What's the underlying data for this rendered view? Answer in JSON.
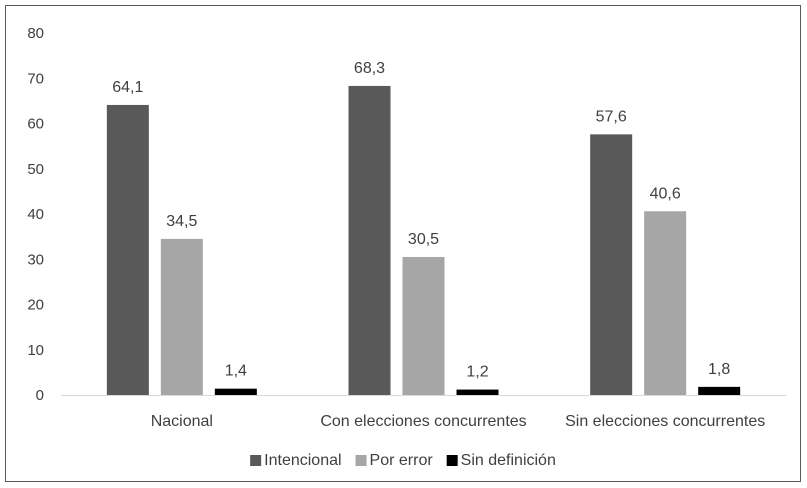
{
  "chart_data": {
    "type": "bar",
    "categories": [
      "Nacional",
      "Con elecciones concurrentes",
      "Sin elecciones concurrentes"
    ],
    "series": [
      {
        "name": "Intencional",
        "values": [
          64.1,
          68.3,
          57.6
        ],
        "labels": [
          "64,1",
          "68,3",
          "57,6"
        ],
        "color": "#595959"
      },
      {
        "name": "Por error",
        "values": [
          34.5,
          30.5,
          40.6
        ],
        "labels": [
          "34,5",
          "30,5",
          "40,6"
        ],
        "color": "#a6a6a6"
      },
      {
        "name": "Sin definición",
        "values": [
          1.4,
          1.2,
          1.8
        ],
        "labels": [
          "1,4",
          "1,2",
          "1,8"
        ],
        "color": "#000000"
      }
    ],
    "yticks": [
      "0",
      "10",
      "20",
      "30",
      "40",
      "50",
      "60",
      "70",
      "80"
    ],
    "ylim": [
      0,
      80
    ],
    "grid": false,
    "legend_position": "bottom",
    "title": "",
    "xlabel": "",
    "ylabel": ""
  }
}
